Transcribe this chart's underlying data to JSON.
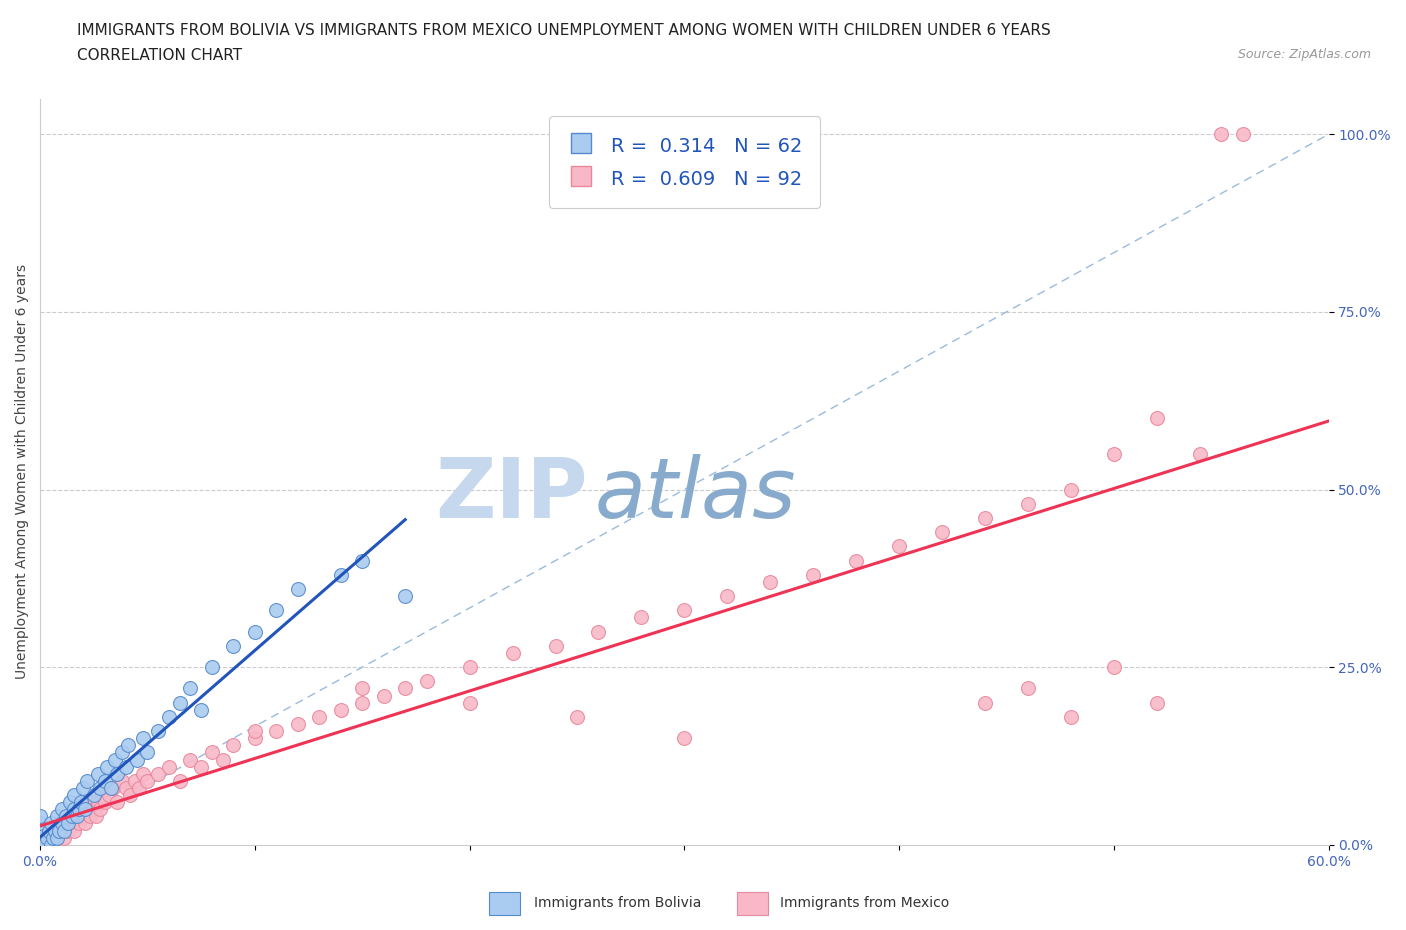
{
  "title_line1": "IMMIGRANTS FROM BOLIVIA VS IMMIGRANTS FROM MEXICO UNEMPLOYMENT AMONG WOMEN WITH CHILDREN UNDER 6 YEARS",
  "title_line2": "CORRELATION CHART",
  "source_text": "Source: ZipAtlas.com",
  "xlabel": "",
  "ylabel": "Unemployment Among Women with Children Under 6 years",
  "xlim": [
    0.0,
    0.6
  ],
  "ylim": [
    0.0,
    1.05
  ],
  "xticks": [
    0.0,
    0.1,
    0.2,
    0.3,
    0.4,
    0.5,
    0.6
  ],
  "xticklabels": [
    "0.0%",
    "",
    "",
    "",
    "",
    "",
    "60.0%"
  ],
  "yticks": [
    0.0,
    0.25,
    0.5,
    0.75,
    1.0
  ],
  "yticklabels": [
    "0.0%",
    "25.0%",
    "50.0%",
    "75.0%",
    "100.0%"
  ],
  "bolivia_color": "#aaccf0",
  "bolivia_edge_color": "#5588cc",
  "mexico_color": "#f8b8c8",
  "mexico_edge_color": "#e8889a",
  "trendline_bolivia_color": "#2255bb",
  "trendline_mexico_color": "#ee3355",
  "diagonal_color": "#99bbdd",
  "watermark_zip_color": "#c5d8ee",
  "watermark_atlas_color": "#88aacc",
  "legend_R_bolivia": "R =  0.314",
  "legend_N_bolivia": "N = 62",
  "legend_R_mexico": "R =  0.609",
  "legend_N_mexico": "N = 92",
  "title_fontsize": 11,
  "subtitle_fontsize": 11,
  "axis_label_fontsize": 10,
  "tick_fontsize": 10,
  "legend_fontsize": 14,
  "source_fontsize": 9,
  "marker_size": 100,
  "background_color": "#ffffff",
  "grid_color": "#cccccc",
  "bolivia_x": [
    0.0,
    0.0,
    0.0,
    0.0,
    0.0,
    0.0,
    0.0,
    0.0,
    0.0,
    0.0,
    0.002,
    0.003,
    0.004,
    0.005,
    0.005,
    0.006,
    0.007,
    0.008,
    0.008,
    0.009,
    0.01,
    0.01,
    0.011,
    0.012,
    0.013,
    0.014,
    0.015,
    0.016,
    0.016,
    0.017,
    0.018,
    0.019,
    0.02,
    0.021,
    0.022,
    0.025,
    0.027,
    0.028,
    0.03,
    0.031,
    0.033,
    0.035,
    0.036,
    0.038,
    0.04,
    0.041,
    0.045,
    0.048,
    0.05,
    0.055,
    0.06,
    0.065,
    0.07,
    0.075,
    0.08,
    0.09,
    0.1,
    0.11,
    0.12,
    0.14,
    0.15,
    0.17
  ],
  "bolivia_y": [
    0.0,
    0.0,
    0.0,
    0.0,
    0.0,
    0.0,
    0.0,
    0.02,
    0.03,
    0.04,
    0.0,
    0.01,
    0.02,
    0.0,
    0.03,
    0.01,
    0.02,
    0.01,
    0.04,
    0.02,
    0.03,
    0.05,
    0.02,
    0.04,
    0.03,
    0.06,
    0.04,
    0.05,
    0.07,
    0.04,
    0.05,
    0.06,
    0.08,
    0.05,
    0.09,
    0.07,
    0.1,
    0.08,
    0.09,
    0.11,
    0.08,
    0.12,
    0.1,
    0.13,
    0.11,
    0.14,
    0.12,
    0.15,
    0.13,
    0.16,
    0.18,
    0.2,
    0.22,
    0.19,
    0.25,
    0.28,
    0.3,
    0.33,
    0.36,
    0.38,
    0.4,
    0.35
  ],
  "mexico_x": [
    0.0,
    0.0,
    0.0,
    0.0,
    0.0,
    0.0,
    0.002,
    0.003,
    0.004,
    0.005,
    0.006,
    0.007,
    0.008,
    0.009,
    0.01,
    0.011,
    0.012,
    0.013,
    0.014,
    0.015,
    0.016,
    0.017,
    0.018,
    0.019,
    0.02,
    0.021,
    0.022,
    0.023,
    0.024,
    0.025,
    0.026,
    0.027,
    0.028,
    0.029,
    0.03,
    0.032,
    0.034,
    0.036,
    0.038,
    0.04,
    0.042,
    0.044,
    0.046,
    0.048,
    0.05,
    0.055,
    0.06,
    0.065,
    0.07,
    0.075,
    0.08,
    0.085,
    0.09,
    0.1,
    0.11,
    0.12,
    0.13,
    0.14,
    0.15,
    0.16,
    0.17,
    0.18,
    0.2,
    0.22,
    0.24,
    0.26,
    0.28,
    0.3,
    0.32,
    0.34,
    0.36,
    0.38,
    0.4,
    0.42,
    0.44,
    0.46,
    0.48,
    0.5,
    0.52,
    0.54,
    0.55,
    0.56,
    0.52,
    0.5,
    0.48,
    0.46,
    0.44,
    0.3,
    0.25,
    0.2,
    0.15,
    0.1
  ],
  "mexico_y": [
    0.0,
    0.0,
    0.01,
    0.02,
    0.0,
    0.01,
    0.0,
    0.01,
    0.02,
    0.0,
    0.01,
    0.02,
    0.01,
    0.03,
    0.02,
    0.01,
    0.03,
    0.02,
    0.04,
    0.03,
    0.02,
    0.04,
    0.03,
    0.05,
    0.04,
    0.03,
    0.05,
    0.04,
    0.06,
    0.05,
    0.04,
    0.06,
    0.05,
    0.07,
    0.06,
    0.07,
    0.08,
    0.06,
    0.09,
    0.08,
    0.07,
    0.09,
    0.08,
    0.1,
    0.09,
    0.1,
    0.11,
    0.09,
    0.12,
    0.11,
    0.13,
    0.12,
    0.14,
    0.15,
    0.16,
    0.17,
    0.18,
    0.19,
    0.2,
    0.21,
    0.22,
    0.23,
    0.25,
    0.27,
    0.28,
    0.3,
    0.32,
    0.33,
    0.35,
    0.37,
    0.38,
    0.4,
    0.42,
    0.44,
    0.46,
    0.48,
    0.5,
    0.55,
    0.6,
    0.55,
    1.0,
    1.0,
    0.2,
    0.25,
    0.18,
    0.22,
    0.2,
    0.15,
    0.18,
    0.2,
    0.22,
    0.16
  ]
}
